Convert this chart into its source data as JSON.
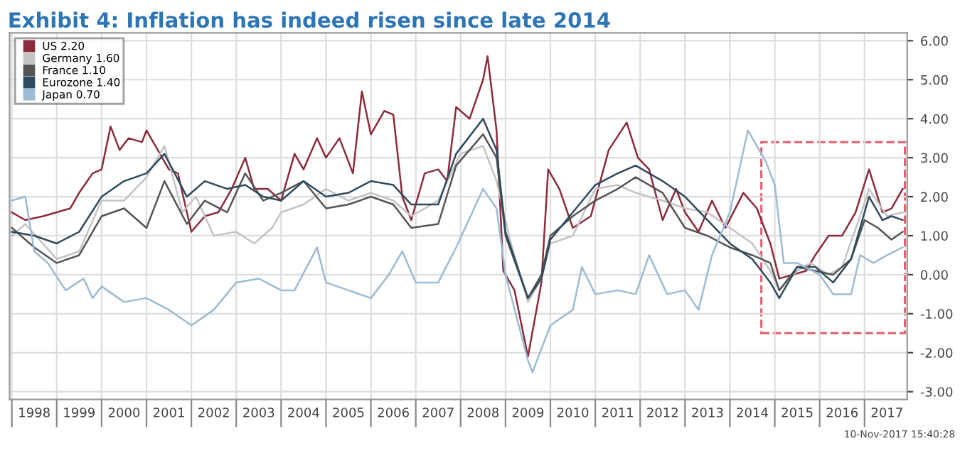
{
  "chart_data": {
    "type": "line",
    "title": "Exhibit 4: Inflation has indeed risen since late 2014",
    "annotations": [
      "10-Nov-2017 15:40:28"
    ],
    "xlim": [
      1997.95,
      2017.95
    ],
    "ylim": [
      -3.2,
      6.2
    ],
    "xticks": [
      {
        "value": 1998,
        "label": null
      },
      {
        "value": 1999,
        "label": null
      },
      {
        "value": 2000,
        "label": null
      },
      {
        "value": 2001,
        "label": null
      },
      {
        "value": 2002,
        "label": null
      },
      {
        "value": 2003,
        "label": null
      },
      {
        "value": 2004,
        "label": null
      },
      {
        "value": 2005,
        "label": null
      },
      {
        "value": 2006,
        "label": null
      },
      {
        "value": 2007,
        "label": null
      },
      {
        "value": 2008,
        "label": null
      },
      {
        "value": 2009,
        "label": null
      },
      {
        "value": 2010,
        "label": null
      },
      {
        "value": 2011,
        "label": null
      },
      {
        "value": 2012,
        "label": null
      },
      {
        "value": 2013,
        "label": null
      },
      {
        "value": 2014,
        "label": null
      },
      {
        "value": 2015,
        "label": null
      },
      {
        "value": 2016,
        "label": null
      },
      {
        "value": 2017,
        "label": null
      },
      {
        "value": 1998.5,
        "label": "1998"
      },
      {
        "value": 1999.5,
        "label": "1999"
      },
      {
        "value": 2000.5,
        "label": "2000"
      },
      {
        "value": 2001.5,
        "label": "2001"
      },
      {
        "value": 2002.5,
        "label": "2002"
      },
      {
        "value": 2003.5,
        "label": "2003"
      },
      {
        "value": 2004.5,
        "label": "2004"
      },
      {
        "value": 2005.5,
        "label": "2005"
      },
      {
        "value": 2006.5,
        "label": "2006"
      },
      {
        "value": 2007.5,
        "label": "2007"
      },
      {
        "value": 2008.5,
        "label": "2008"
      },
      {
        "value": 2009.5,
        "label": "2009"
      },
      {
        "value": 2010.5,
        "label": "2010"
      },
      {
        "value": 2011.5,
        "label": "2011"
      },
      {
        "value": 2012.5,
        "label": "2012"
      },
      {
        "value": 2013.5,
        "label": "2013"
      },
      {
        "value": 2014.5,
        "label": "2014"
      },
      {
        "value": 2015.5,
        "label": "2015"
      },
      {
        "value": 2016.5,
        "label": "2016"
      },
      {
        "value": 2017.5,
        "label": "2017"
      }
    ],
    "yticks": [
      {
        "value": -3,
        "label": "-3.00"
      },
      {
        "value": -2,
        "label": "-2.00"
      },
      {
        "value": -1,
        "label": "-1.00"
      },
      {
        "value": 0,
        "label": "0.00"
      },
      {
        "value": 1,
        "label": "1.00"
      },
      {
        "value": 2,
        "label": "2.00"
      },
      {
        "value": 3,
        "label": "3.00"
      },
      {
        "value": 4,
        "label": "4.00"
      },
      {
        "value": 5,
        "label": "5.00"
      },
      {
        "value": 6,
        "label": "6.00"
      }
    ],
    "grid": true,
    "legend": "top left",
    "line_style": "solid",
    "series": [
      {
        "name": "US 2.20",
        "color": "#8b2b3b",
        "x": [
          1998.0,
          1998.3,
          1998.7,
          1999.0,
          1999.3,
          1999.5,
          1999.8,
          2000.0,
          2000.2,
          2000.4,
          2000.6,
          2000.9,
          2001.0,
          2001.2,
          2001.5,
          2001.7,
          2001.9,
          2002.0,
          2002.3,
          2002.6,
          2002.9,
          2003.2,
          2003.4,
          2003.7,
          2004.0,
          2004.3,
          2004.5,
          2004.8,
          2005.0,
          2005.3,
          2005.6,
          2005.8,
          2006.0,
          2006.3,
          2006.5,
          2006.7,
          2006.9,
          2007.2,
          2007.5,
          2007.7,
          2007.9,
          2008.2,
          2008.5,
          2008.6,
          2008.8,
          2008.95,
          2009.2,
          2009.5,
          2009.8,
          2009.95,
          2010.2,
          2010.5,
          2010.9,
          2011.3,
          2011.7,
          2011.95,
          2012.2,
          2012.5,
          2012.8,
          2013.0,
          2013.3,
          2013.6,
          2013.9,
          2014.3,
          2014.6,
          2014.9,
          2015.1,
          2015.4,
          2015.7,
          2015.9,
          2016.2,
          2016.5,
          2016.8,
          2017.1,
          2017.4,
          2017.6,
          2017.85
        ],
        "values": [
          1.6,
          1.4,
          1.5,
          1.6,
          1.7,
          2.1,
          2.6,
          2.7,
          3.8,
          3.2,
          3.5,
          3.4,
          3.7,
          3.3,
          2.7,
          2.6,
          1.6,
          1.1,
          1.5,
          1.6,
          2.2,
          3.0,
          2.2,
          2.2,
          1.9,
          3.1,
          2.7,
          3.5,
          3.0,
          3.5,
          2.6,
          4.7,
          3.6,
          4.2,
          4.1,
          2.0,
          1.4,
          2.6,
          2.7,
          2.4,
          4.3,
          4.0,
          5.0,
          5.6,
          3.7,
          0.1,
          -0.4,
          -2.1,
          -0.2,
          2.7,
          2.2,
          1.2,
          1.5,
          3.2,
          3.9,
          3.0,
          2.7,
          1.4,
          2.2,
          1.6,
          1.1,
          1.9,
          1.2,
          2.1,
          1.7,
          0.8,
          -0.1,
          0.0,
          0.1,
          0.5,
          1.0,
          1.0,
          1.6,
          2.7,
          1.6,
          1.7,
          2.2
        ]
      },
      {
        "name": "Germany 1.60",
        "color": "#c4c4c4",
        "x": [
          1998.0,
          1998.3,
          1999.0,
          1999.5,
          2000.0,
          2000.5,
          2001.0,
          2001.4,
          2001.8,
          2002.1,
          2002.5,
          2003.0,
          2003.4,
          2003.8,
          2004.0,
          2004.5,
          2005.0,
          2005.5,
          2006.0,
          2006.5,
          2006.9,
          2007.5,
          2008.0,
          2008.5,
          2008.8,
          2009.1,
          2009.5,
          2009.8,
          2010.0,
          2010.5,
          2011.0,
          2011.5,
          2011.9,
          2012.5,
          2013.0,
          2013.5,
          2014.0,
          2014.5,
          2014.9,
          2015.1,
          2015.5,
          2015.8,
          2016.2,
          2016.5,
          2016.9,
          2017.1,
          2017.5,
          2017.85
        ],
        "values": [
          1.0,
          1.3,
          0.4,
          0.6,
          1.9,
          1.9,
          2.5,
          3.3,
          1.6,
          2.0,
          1.0,
          1.1,
          0.8,
          1.2,
          1.6,
          1.8,
          2.2,
          1.9,
          2.1,
          1.9,
          1.5,
          1.9,
          3.1,
          3.3,
          2.4,
          0.9,
          -0.7,
          -0.1,
          0.8,
          1.0,
          2.2,
          2.3,
          2.1,
          1.9,
          1.7,
          1.6,
          1.2,
          0.8,
          0.1,
          -0.4,
          0.1,
          0.3,
          0.0,
          0.2,
          1.5,
          2.2,
          1.5,
          1.6
        ]
      },
      {
        "name": "France 1.10",
        "color": "#555555",
        "x": [
          1998.0,
          1998.5,
          1999.0,
          1999.5,
          2000.0,
          2000.5,
          2001.0,
          2001.4,
          2001.9,
          2002.3,
          2002.8,
          2003.2,
          2003.6,
          2004.0,
          2004.5,
          2005.0,
          2005.5,
          2006.0,
          2006.5,
          2006.9,
          2007.5,
          2007.9,
          2008.5,
          2008.8,
          2009.0,
          2009.5,
          2009.8,
          2010.0,
          2010.5,
          2011.0,
          2011.5,
          2011.9,
          2012.5,
          2013.0,
          2013.5,
          2014.0,
          2014.5,
          2014.9,
          2015.1,
          2015.5,
          2015.9,
          2016.3,
          2016.7,
          2017.0,
          2017.3,
          2017.6,
          2017.85
        ],
        "values": [
          1.2,
          0.7,
          0.3,
          0.5,
          1.5,
          1.7,
          1.2,
          2.4,
          1.3,
          1.9,
          1.6,
          2.6,
          1.9,
          2.1,
          2.4,
          1.7,
          1.8,
          2.0,
          1.8,
          1.2,
          1.3,
          2.8,
          3.6,
          3.0,
          1.0,
          -0.6,
          0.0,
          1.0,
          1.5,
          1.9,
          2.2,
          2.5,
          2.1,
          1.2,
          1.0,
          0.7,
          0.5,
          0.3,
          -0.4,
          0.2,
          0.1,
          0.0,
          0.4,
          1.4,
          1.2,
          0.9,
          1.1
        ]
      },
      {
        "name": "Eurozone 1.40",
        "color": "#2f4a5e",
        "x": [
          1998.0,
          1998.5,
          1999.0,
          1999.5,
          2000.0,
          2000.5,
          2001.0,
          2001.4,
          2001.9,
          2002.3,
          2002.8,
          2003.2,
          2003.6,
          2004.0,
          2004.5,
          2005.0,
          2005.5,
          2006.0,
          2006.5,
          2006.9,
          2007.5,
          2007.9,
          2008.5,
          2008.8,
          2009.0,
          2009.5,
          2009.8,
          2010.0,
          2010.5,
          2011.0,
          2011.5,
          2011.9,
          2012.5,
          2013.0,
          2013.5,
          2014.0,
          2014.5,
          2014.9,
          2015.1,
          2015.5,
          2015.9,
          2016.3,
          2016.7,
          2017.1,
          2017.4,
          2017.6,
          2017.85
        ],
        "values": [
          1.1,
          1.0,
          0.8,
          1.1,
          2.0,
          2.4,
          2.6,
          3.1,
          2.0,
          2.4,
          2.2,
          2.3,
          2.0,
          1.9,
          2.4,
          2.0,
          2.1,
          2.4,
          2.3,
          1.8,
          1.8,
          3.1,
          4.0,
          3.2,
          1.1,
          -0.6,
          -0.1,
          0.9,
          1.6,
          2.3,
          2.6,
          2.8,
          2.4,
          2.0,
          1.4,
          0.8,
          0.4,
          -0.2,
          -0.6,
          0.2,
          0.2,
          -0.2,
          0.4,
          2.0,
          1.4,
          1.5,
          1.4
        ]
      },
      {
        "name": "Japan 0.70",
        "color": "#9cbbd4",
        "x": [
          1998.0,
          1998.3,
          1998.5,
          1998.8,
          1999.2,
          1999.6,
          1999.8,
          2000.0,
          2000.5,
          2001.0,
          2001.5,
          2002.0,
          2002.5,
          2003.0,
          2003.5,
          2004.0,
          2004.3,
          2004.8,
          2005.0,
          2005.5,
          2006.0,
          2006.4,
          2006.7,
          2007.0,
          2007.5,
          2007.9,
          2008.5,
          2008.8,
          2009.0,
          2009.5,
          2009.6,
          2010.0,
          2010.5,
          2010.7,
          2011.0,
          2011.5,
          2011.9,
          2012.2,
          2012.6,
          2013.0,
          2013.3,
          2013.6,
          2014.0,
          2014.4,
          2014.8,
          2015.0,
          2015.2,
          2015.5,
          2016.0,
          2016.3,
          2016.7,
          2016.9,
          2017.2,
          2017.5,
          2017.85
        ],
        "values": [
          1.9,
          2.0,
          0.6,
          0.3,
          -0.4,
          -0.1,
          -0.6,
          -0.3,
          -0.7,
          -0.6,
          -0.9,
          -1.3,
          -0.9,
          -0.2,
          -0.1,
          -0.4,
          -0.4,
          0.7,
          -0.2,
          -0.4,
          -0.6,
          0.0,
          0.6,
          -0.2,
          -0.2,
          0.7,
          2.2,
          1.7,
          0.0,
          -2.2,
          -2.5,
          -1.3,
          -0.9,
          0.2,
          -0.5,
          -0.4,
          -0.5,
          0.5,
          -0.5,
          -0.4,
          -0.9,
          0.5,
          1.6,
          3.7,
          2.9,
          2.3,
          0.3,
          0.3,
          0.0,
          -0.5,
          -0.5,
          0.5,
          0.3,
          0.5,
          0.7
        ]
      }
    ]
  }
}
